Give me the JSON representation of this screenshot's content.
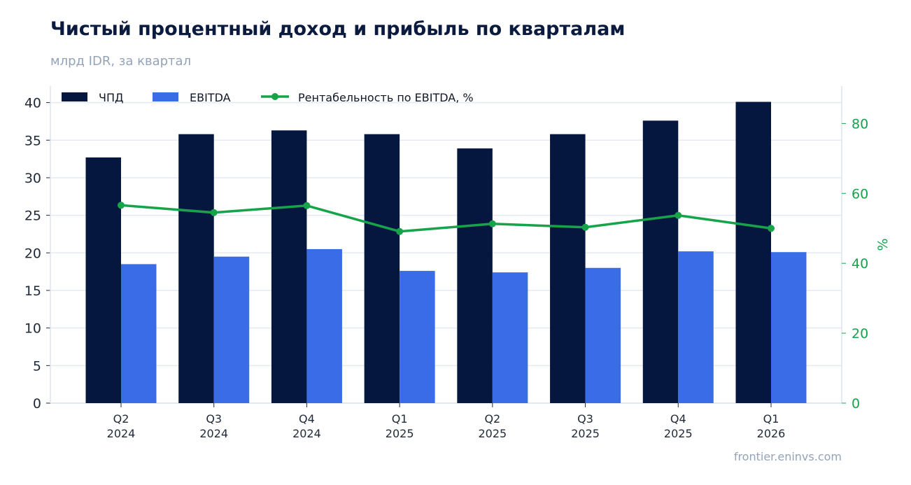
{
  "title": "Чистый процентный доход и прибыль по кварталам",
  "subtitle": "млрд IDR, за квартал",
  "source": "frontier.eninvs.com",
  "colors": {
    "npd": "#05173f",
    "ebitda": "#3b6ce8",
    "margin": "#16a34a",
    "grid": "#e5e9f2"
  },
  "chart_data": {
    "type": "bar",
    "categories": [
      [
        "Q2",
        "2024"
      ],
      [
        "Q3",
        "2024"
      ],
      [
        "Q4",
        "2024"
      ],
      [
        "Q1",
        "2025"
      ],
      [
        "Q2",
        "2025"
      ],
      [
        "Q3",
        "2025"
      ],
      [
        "Q4",
        "2025"
      ],
      [
        "Q1",
        "2026"
      ]
    ],
    "series": [
      {
        "name": "ЧПД",
        "type": "bar",
        "axis": "left",
        "values": [
          32.7,
          35.8,
          36.3,
          35.8,
          33.9,
          35.8,
          37.6,
          40.1
        ]
      },
      {
        "name": "EBITDA",
        "type": "bar",
        "axis": "left",
        "values": [
          18.5,
          19.5,
          20.5,
          17.6,
          17.4,
          18.0,
          20.2,
          20.1
        ]
      },
      {
        "name": "Рентабельность по EBITDA, %",
        "type": "line",
        "axis": "right",
        "values": [
          56.6,
          54.5,
          56.5,
          49.1,
          51.3,
          50.3,
          53.7,
          50.0
        ]
      }
    ],
    "y_left": {
      "min": 0,
      "max": 40,
      "ticks": [
        "0",
        "5",
        "10",
        "15",
        "20",
        "25",
        "30",
        "35",
        "40"
      ]
    },
    "y_right": {
      "label": "%",
      "min": 0,
      "max": 80,
      "ticks": [
        "0",
        "20",
        "40",
        "60",
        "80"
      ]
    },
    "legend_position": "top-left",
    "grid": true
  }
}
